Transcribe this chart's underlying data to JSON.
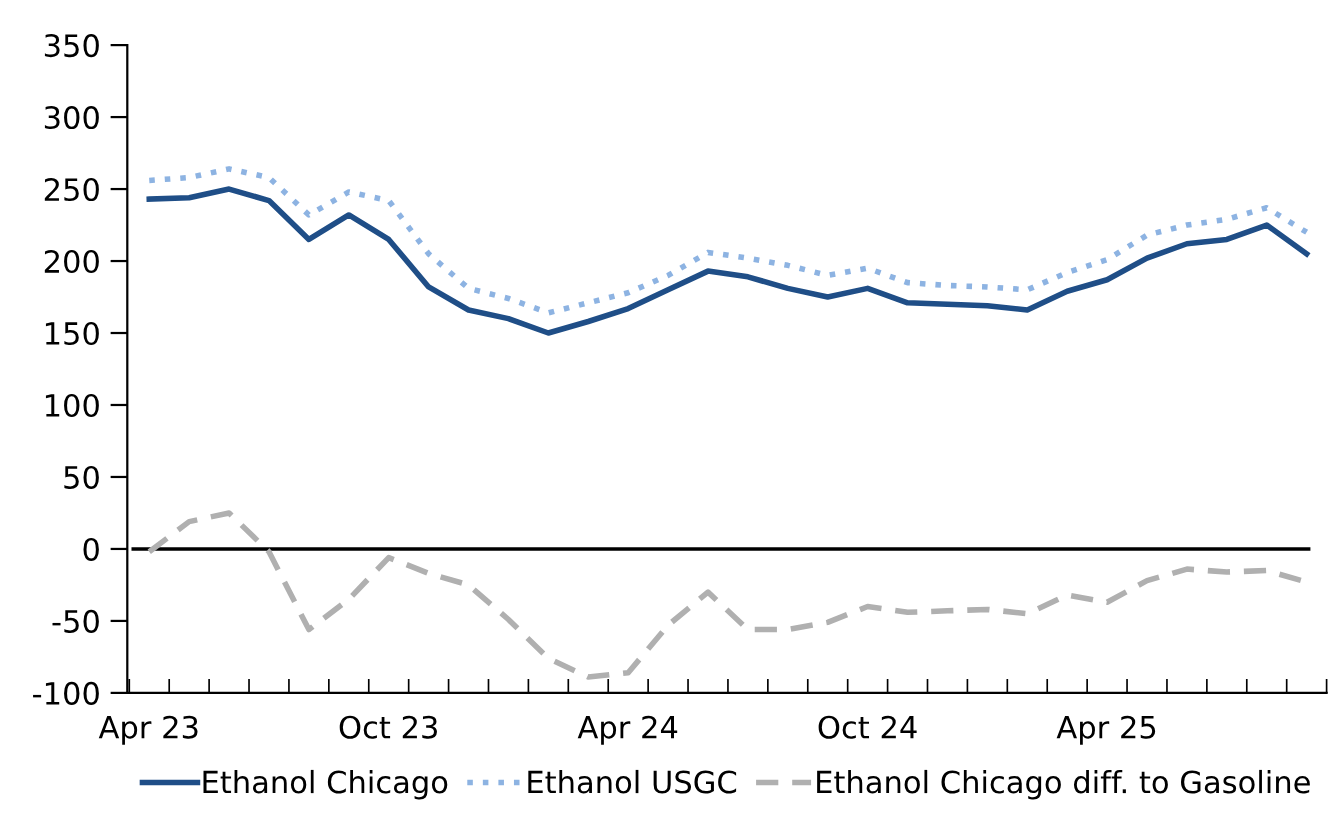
{
  "chart_data": {
    "type": "line",
    "categories": [
      "Apr 23",
      null,
      null,
      null,
      null,
      null,
      "Oct 23",
      null,
      null,
      null,
      null,
      null,
      "Apr 24",
      null,
      null,
      null,
      null,
      null,
      "Oct 24",
      null,
      null,
      null,
      null,
      null,
      "Apr 25",
      null,
      null,
      null,
      null,
      null
    ],
    "series": [
      {
        "name": "Ethanol Chicago",
        "color": "#1f4e87",
        "line_style": "solid",
        "values": [
          243,
          244,
          250,
          242,
          215,
          232,
          215,
          182,
          166,
          160,
          150,
          158,
          167,
          180,
          193,
          189,
          181,
          175,
          181,
          171,
          170,
          169,
          166,
          179,
          187,
          202,
          212,
          215,
          225,
          205
        ]
      },
      {
        "name": "Ethanol USGC",
        "color": "#8db3e2",
        "line_style": "dotted",
        "values": [
          256,
          258,
          264,
          258,
          232,
          248,
          242,
          205,
          181,
          174,
          164,
          171,
          178,
          190,
          206,
          202,
          197,
          190,
          195,
          185,
          183,
          182,
          180,
          192,
          201,
          218,
          225,
          229,
          237,
          220
        ]
      },
      {
        "name": "Ethanol Chicago diff. to Gasoline",
        "color": "#b0b0b0",
        "line_style": "dashed",
        "values": [
          -2,
          19,
          25,
          -2,
          -56,
          -35,
          -6,
          -17,
          -25,
          -49,
          -76,
          -89,
          -86,
          -53,
          -30,
          -56,
          -56,
          -51,
          -40,
          -44,
          -43,
          -42,
          -45,
          -32,
          -37,
          -22,
          -14,
          -16,
          -15,
          -23
        ]
      }
    ],
    "ylim": [
      -100,
      350
    ],
    "yticks": [
      -100,
      -50,
      0,
      50,
      100,
      150,
      200,
      250,
      300,
      350
    ],
    "ref_lines": [
      {
        "axis": "y",
        "value": 0,
        "color": "#000000"
      }
    ],
    "marker": "none",
    "grid": false,
    "legend": "bottom"
  }
}
